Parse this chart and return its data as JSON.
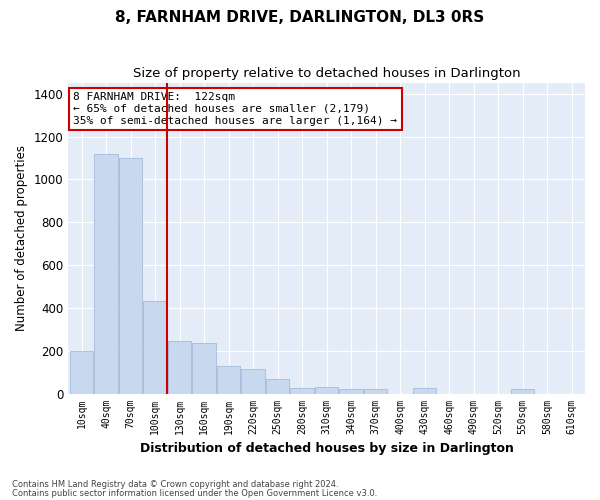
{
  "title": "8, FARNHAM DRIVE, DARLINGTON, DL3 0RS",
  "subtitle": "Size of property relative to detached houses in Darlington",
  "xlabel": "Distribution of detached houses by size in Darlington",
  "ylabel": "Number of detached properties",
  "bar_color": "#c8d8ee",
  "bar_edge_color": "#9ab4d8",
  "bg_color": "#e4ecf8",
  "grid_color": "#ffffff",
  "categories": [
    "10sqm",
    "40sqm",
    "70sqm",
    "100sqm",
    "130sqm",
    "160sqm",
    "190sqm",
    "220sqm",
    "250sqm",
    "280sqm",
    "310sqm",
    "340sqm",
    "370sqm",
    "400sqm",
    "430sqm",
    "460sqm",
    "490sqm",
    "520sqm",
    "550sqm",
    "580sqm",
    "610sqm"
  ],
  "values": [
    200,
    1120,
    1100,
    430,
    245,
    235,
    130,
    115,
    70,
    25,
    30,
    20,
    20,
    0,
    25,
    0,
    0,
    0,
    20,
    0,
    0
  ],
  "property_bin_index": 3,
  "annotation_text": "8 FARNHAM DRIVE:  122sqm\n← 65% of detached houses are smaller (2,179)\n35% of semi-detached houses are larger (1,164) →",
  "vline_color": "#cc0000",
  "box_edge_color": "#cc0000",
  "ylim": [
    0,
    1450
  ],
  "yticks": [
    0,
    200,
    400,
    600,
    800,
    1000,
    1200,
    1400
  ],
  "footer1": "Contains HM Land Registry data © Crown copyright and database right 2024.",
  "footer2": "Contains public sector information licensed under the Open Government Licence v3.0."
}
